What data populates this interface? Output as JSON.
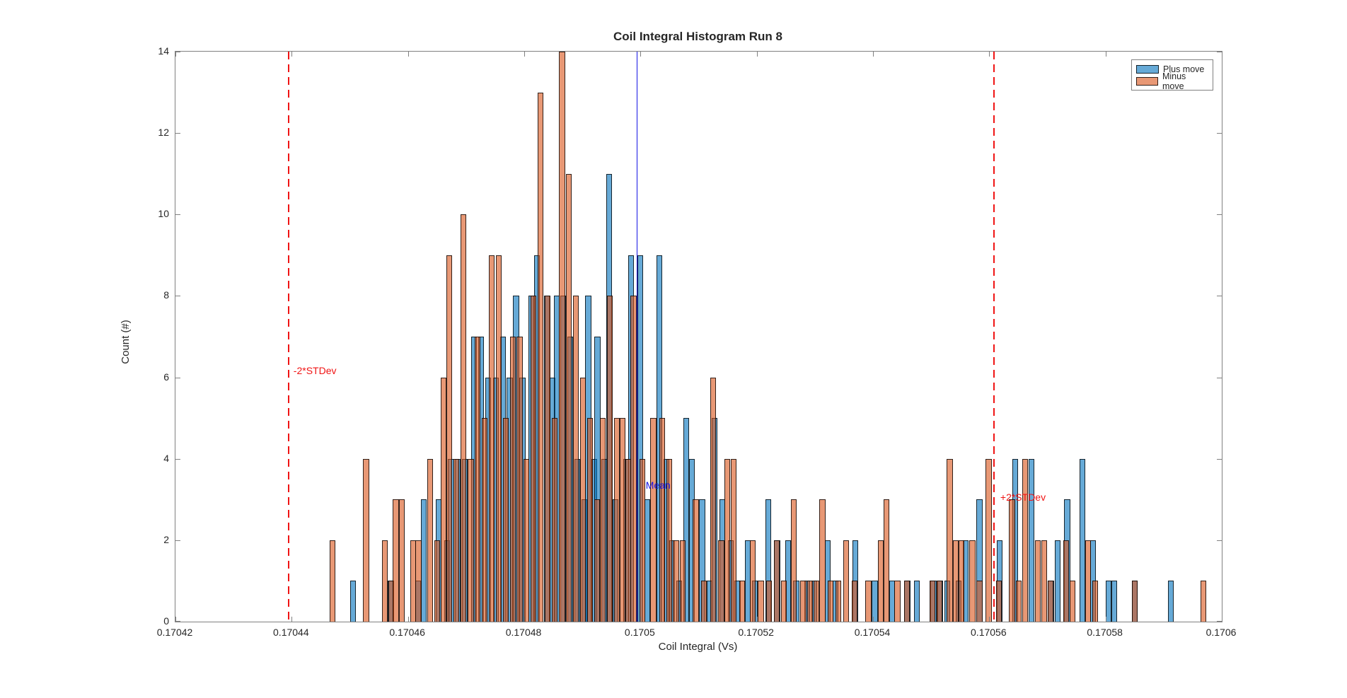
{
  "figure": {
    "title": "Coil Integral Histogram Run 8",
    "xlabel": "Coil Integral (Vs)",
    "ylabel": "Count (#)"
  },
  "legend": {
    "items": [
      {
        "label": "Plus move",
        "color": "#0072BD"
      },
      {
        "label": "Minus move",
        "color": "#D95319"
      }
    ]
  },
  "chart_data": {
    "type": "bar",
    "subtype": "overlaid-histogram",
    "title": "Coil Integral Histogram Run 8",
    "xlabel": "Coil Integral (Vs)",
    "ylabel": "Count (#)",
    "xlim": [
      0.17042,
      0.1706
    ],
    "ylim": [
      0,
      14
    ],
    "grid": false,
    "legend_position": "top-right-inside",
    "bin_width": 1e-06,
    "x_tick_labels": [
      "0.17042",
      "0.17044",
      "0.17046",
      "0.17048",
      "0.1705",
      "0.17052",
      "0.17054",
      "0.17056",
      "0.17058",
      "0.1706"
    ],
    "x_ticks": [
      0.17042,
      0.17044,
      0.17046,
      0.17048,
      0.1705,
      0.17052,
      0.17054,
      0.17056,
      0.17058,
      0.1706
    ],
    "y_ticks": [
      0,
      2,
      4,
      6,
      8,
      10,
      12,
      14
    ],
    "series": [
      {
        "name": "Plus move",
        "color": "#0072BD",
        "fill_alpha": 0.6,
        "bars": [
          [
            0.17045,
            1
          ],
          [
            0.1704565,
            1
          ],
          [
            0.1704612,
            1
          ],
          [
            0.1704622,
            3
          ],
          [
            0.1704648,
            3
          ],
          [
            0.1704662,
            2
          ],
          [
            0.1704669,
            4
          ],
          [
            0.1704681,
            4
          ],
          [
            0.1704693,
            4
          ],
          [
            0.1704709,
            7
          ],
          [
            0.1704721,
            7
          ],
          [
            0.1704733,
            6
          ],
          [
            0.1704746,
            6
          ],
          [
            0.1704758,
            7
          ],
          [
            0.170477,
            6
          ],
          [
            0.1704781,
            8
          ],
          [
            0.1704792,
            6
          ],
          [
            0.1704807,
            8
          ],
          [
            0.1704817,
            9
          ],
          [
            0.1704834,
            8
          ],
          [
            0.1704844,
            6
          ],
          [
            0.1704851,
            8
          ],
          [
            0.1704862,
            8
          ],
          [
            0.1704874,
            7
          ],
          [
            0.1704886,
            4
          ],
          [
            0.1704898,
            3
          ],
          [
            0.1704905,
            8
          ],
          [
            0.1704915,
            4
          ],
          [
            0.1704921,
            7
          ],
          [
            0.1704933,
            4
          ],
          [
            0.1704941,
            11
          ],
          [
            0.1704952,
            3
          ],
          [
            0.170497,
            4
          ],
          [
            0.1704979,
            9
          ],
          [
            0.1704995,
            9
          ],
          [
            0.1705007,
            3
          ],
          [
            0.1705027,
            9
          ],
          [
            0.170504,
            4
          ],
          [
            0.1705049,
            2
          ],
          [
            0.1705061,
            1
          ],
          [
            0.1705074,
            5
          ],
          [
            0.1705083,
            4
          ],
          [
            0.1705101,
            3
          ],
          [
            0.1705114,
            1
          ],
          [
            0.1705122,
            5
          ],
          [
            0.1705136,
            3
          ],
          [
            0.170515,
            2
          ],
          [
            0.1705162,
            1
          ],
          [
            0.170518,
            2
          ],
          [
            0.1705192,
            1
          ],
          [
            0.1705215,
            3
          ],
          [
            0.170523,
            2
          ],
          [
            0.1705249,
            2
          ],
          [
            0.1705263,
            1
          ],
          [
            0.1705282,
            1
          ],
          [
            0.1705294,
            1
          ],
          [
            0.1705317,
            2
          ],
          [
            0.170533,
            1
          ],
          [
            0.1705365,
            2
          ],
          [
            0.1705398,
            1
          ],
          [
            0.1705428,
            1
          ],
          [
            0.1705454,
            1
          ],
          [
            0.170547,
            1
          ],
          [
            0.1705499,
            1
          ],
          [
            0.1705511,
            1
          ],
          [
            0.1705523,
            1
          ],
          [
            0.1705542,
            1
          ],
          [
            0.1705554,
            2
          ],
          [
            0.1705578,
            3
          ],
          [
            0.1705613,
            2
          ],
          [
            0.170564,
            4
          ],
          [
            0.1705668,
            4
          ],
          [
            0.1705701,
            1
          ],
          [
            0.1705713,
            2
          ],
          [
            0.1705729,
            3
          ],
          [
            0.1705755,
            4
          ],
          [
            0.1705773,
            2
          ],
          [
            0.17058,
            1
          ],
          [
            0.170581,
            1
          ],
          [
            0.1705845,
            1
          ],
          [
            0.1705907,
            1
          ]
        ]
      },
      {
        "name": "Minus move",
        "color": "#D95319",
        "fill_alpha": 0.6,
        "bars": [
          [
            0.1704465,
            2
          ],
          [
            0.1704523,
            4
          ],
          [
            0.1704555,
            2
          ],
          [
            0.1704566,
            1
          ],
          [
            0.1704574,
            3
          ],
          [
            0.1704584,
            3
          ],
          [
            0.1704604,
            2
          ],
          [
            0.1704613,
            2
          ],
          [
            0.1704633,
            4
          ],
          [
            0.1704645,
            2
          ],
          [
            0.1704656,
            6
          ],
          [
            0.1704666,
            9
          ],
          [
            0.1704678,
            4
          ],
          [
            0.170469,
            10
          ],
          [
            0.1704703,
            4
          ],
          [
            0.1704715,
            7
          ],
          [
            0.1704727,
            5
          ],
          [
            0.1704739,
            9
          ],
          [
            0.1704751,
            9
          ],
          [
            0.1704763,
            5
          ],
          [
            0.1704775,
            7
          ],
          [
            0.1704787,
            7
          ],
          [
            0.1704799,
            4
          ],
          [
            0.1704811,
            8
          ],
          [
            0.1704823,
            13
          ],
          [
            0.1704835,
            8
          ],
          [
            0.1704847,
            5
          ],
          [
            0.170486,
            14
          ],
          [
            0.1704872,
            11
          ],
          [
            0.1704884,
            8
          ],
          [
            0.1704896,
            6
          ],
          [
            0.1704908,
            5
          ],
          [
            0.170492,
            3
          ],
          [
            0.170493,
            5
          ],
          [
            0.1704942,
            8
          ],
          [
            0.1704954,
            5
          ],
          [
            0.1704964,
            5
          ],
          [
            0.1704974,
            4
          ],
          [
            0.1704983,
            8
          ],
          [
            0.1704998,
            4
          ],
          [
            0.1705017,
            5
          ],
          [
            0.1705032,
            5
          ],
          [
            0.1705044,
            4
          ],
          [
            0.1705056,
            2
          ],
          [
            0.1705068,
            2
          ],
          [
            0.170509,
            3
          ],
          [
            0.1705104,
            1
          ],
          [
            0.170512,
            6
          ],
          [
            0.1705134,
            2
          ],
          [
            0.1705144,
            4
          ],
          [
            0.1705155,
            4
          ],
          [
            0.170517,
            1
          ],
          [
            0.1705188,
            2
          ],
          [
            0.1705202,
            1
          ],
          [
            0.1705216,
            1
          ],
          [
            0.1705229,
            2
          ],
          [
            0.1705242,
            1
          ],
          [
            0.1705259,
            3
          ],
          [
            0.1705275,
            1
          ],
          [
            0.1705287,
            1
          ],
          [
            0.1705298,
            1
          ],
          [
            0.1705308,
            3
          ],
          [
            0.1705322,
            1
          ],
          [
            0.1705335,
            1
          ],
          [
            0.1705349,
            2
          ],
          [
            0.1705363,
            1
          ],
          [
            0.1705387,
            1
          ],
          [
            0.1705408,
            2
          ],
          [
            0.1705418,
            3
          ],
          [
            0.1705437,
            1
          ],
          [
            0.1705453,
            1
          ],
          [
            0.1705497,
            1
          ],
          [
            0.1705509,
            1
          ],
          [
            0.1705527,
            4
          ],
          [
            0.1705537,
            2
          ],
          [
            0.1705547,
            2
          ],
          [
            0.1705566,
            2
          ],
          [
            0.1705578,
            1
          ],
          [
            0.1705594,
            4
          ],
          [
            0.1705612,
            1
          ],
          [
            0.1705634,
            3
          ],
          [
            0.1705646,
            1
          ],
          [
            0.1705657,
            4
          ],
          [
            0.1705679,
            2
          ],
          [
            0.1705689,
            2
          ],
          [
            0.17057,
            1
          ],
          [
            0.1705727,
            2
          ],
          [
            0.1705738,
            1
          ],
          [
            0.1705765,
            2
          ],
          [
            0.1705777,
            1
          ],
          [
            0.1705845,
            1
          ],
          [
            0.1705963,
            1
          ]
        ]
      }
    ],
    "annotations": {
      "mean_line": {
        "x": 0.1704993,
        "color": "#1414E6",
        "style": "solid",
        "label": "Mean",
        "label_x": 0.1705009,
        "label_y": 3.5
      },
      "minus2_line": {
        "x": 0.1704393,
        "color": "#F01414",
        "style": "dashed",
        "label": "-2*STDev",
        "label_x": 0.1704403,
        "label_y": 6.3
      },
      "plus2_line": {
        "x": 0.1705607,
        "color": "#F01414",
        "style": "dashed",
        "label": "+2*STDev",
        "label_x": 0.1705619,
        "label_y": 3.2
      }
    }
  }
}
